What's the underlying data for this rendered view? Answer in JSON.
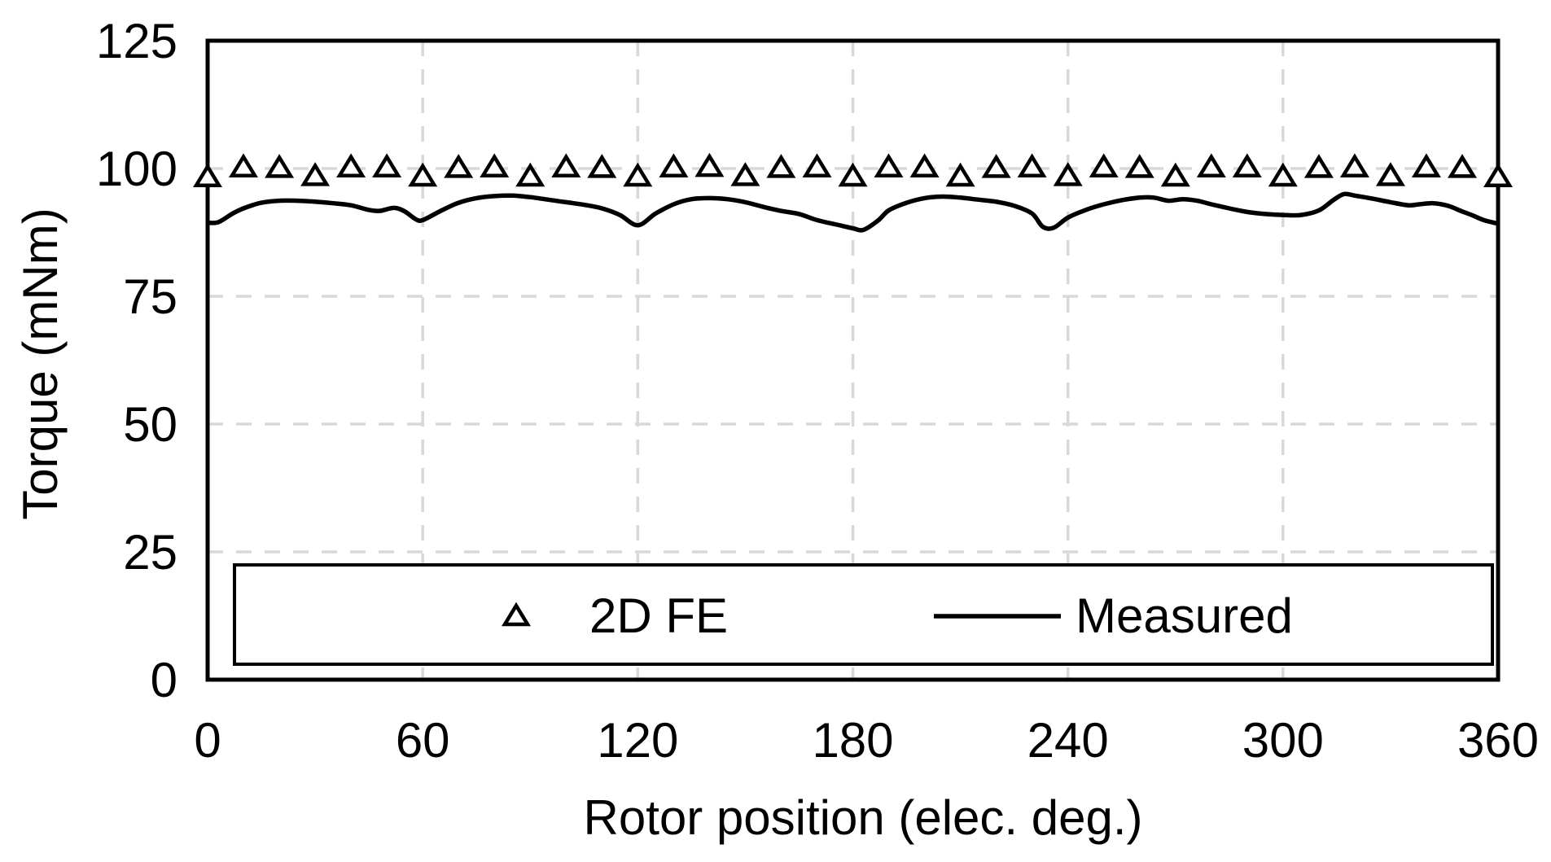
{
  "figure": {
    "background_color": "#ffffff",
    "foreground_color": "#000000",
    "grid_color": "#d8d8d8"
  },
  "chart_data": {
    "type": "line",
    "title": "",
    "xlabel": "Rotor position (elec. deg.)",
    "ylabel": "Torque (mNm)",
    "xlim": [
      0,
      360
    ],
    "ylim": [
      0,
      125
    ],
    "x_ticks": [
      0,
      60,
      120,
      180,
      240,
      300,
      360
    ],
    "y_ticks": [
      0,
      25,
      50,
      75,
      100,
      125
    ],
    "grid": "dashed",
    "legend": {
      "position": "bottom-inside",
      "border": true,
      "entries": [
        "2D FE",
        "Measured"
      ]
    },
    "series": [
      {
        "name": "2D FE",
        "type": "scatter",
        "marker": "hollow-up-triangle",
        "color": "#000000",
        "x": [
          0,
          10,
          20,
          30,
          40,
          50,
          60,
          70,
          80,
          90,
          100,
          110,
          120,
          130,
          140,
          150,
          160,
          170,
          180,
          190,
          200,
          210,
          220,
          230,
          240,
          250,
          260,
          270,
          280,
          290,
          300,
          310,
          320,
          330,
          340,
          350,
          360
        ],
        "y": [
          98.3,
          100.2,
          100.1,
          98.5,
          100.2,
          100.2,
          98.4,
          100.1,
          100.2,
          98.4,
          100.2,
          100.1,
          98.4,
          100.2,
          100.3,
          98.5,
          100.1,
          100.2,
          98.4,
          100.2,
          100.2,
          98.4,
          100.1,
          100.2,
          98.5,
          100.2,
          100.1,
          98.4,
          100.2,
          100.2,
          98.4,
          100.1,
          100.2,
          98.5,
          100.2,
          100.1,
          98.3
        ]
      },
      {
        "name": "Measured",
        "type": "line",
        "color": "#000000",
        "x": [
          0,
          3,
          7,
          10,
          15,
          20,
          25,
          30,
          35,
          40,
          45,
          48,
          52,
          55,
          58,
          60,
          65,
          70,
          75,
          80,
          85,
          90,
          95,
          100,
          105,
          110,
          115,
          120,
          125,
          130,
          135,
          140,
          145,
          150,
          155,
          160,
          165,
          170,
          175,
          180,
          183,
          187,
          190,
          195,
          200,
          205,
          210,
          215,
          220,
          225,
          230,
          233,
          236,
          240,
          245,
          250,
          255,
          260,
          264,
          268,
          272,
          276,
          280,
          285,
          290,
          295,
          300,
          305,
          310,
          314,
          317,
          320,
          325,
          330,
          335,
          338,
          342,
          346,
          350,
          353,
          356,
          360
        ],
        "y": [
          89.4,
          89.5,
          91.2,
          92.2,
          93.3,
          93.7,
          93.7,
          93.5,
          93.2,
          92.8,
          91.9,
          91.7,
          92.3,
          91.6,
          90.1,
          89.9,
          91.7,
          93.3,
          94.2,
          94.6,
          94.7,
          94.4,
          93.9,
          93.4,
          92.9,
          92.2,
          90.9,
          88.9,
          91.2,
          93.0,
          94.0,
          94.2,
          94.0,
          93.4,
          92.5,
          91.7,
          91.1,
          89.9,
          89.1,
          88.3,
          88.0,
          89.8,
          91.8,
          93.3,
          94.2,
          94.5,
          94.3,
          93.9,
          93.5,
          92.7,
          91.2,
          88.6,
          88.4,
          90.4,
          91.9,
          93.0,
          93.8,
          94.3,
          94.3,
          93.7,
          94.0,
          93.7,
          93.0,
          92.2,
          91.5,
          91.1,
          90.9,
          90.9,
          91.8,
          93.8,
          95.0,
          94.7,
          94.1,
          93.4,
          92.8,
          93.0,
          93.2,
          92.7,
          91.6,
          90.8,
          89.9,
          89.2
        ]
      }
    ]
  }
}
